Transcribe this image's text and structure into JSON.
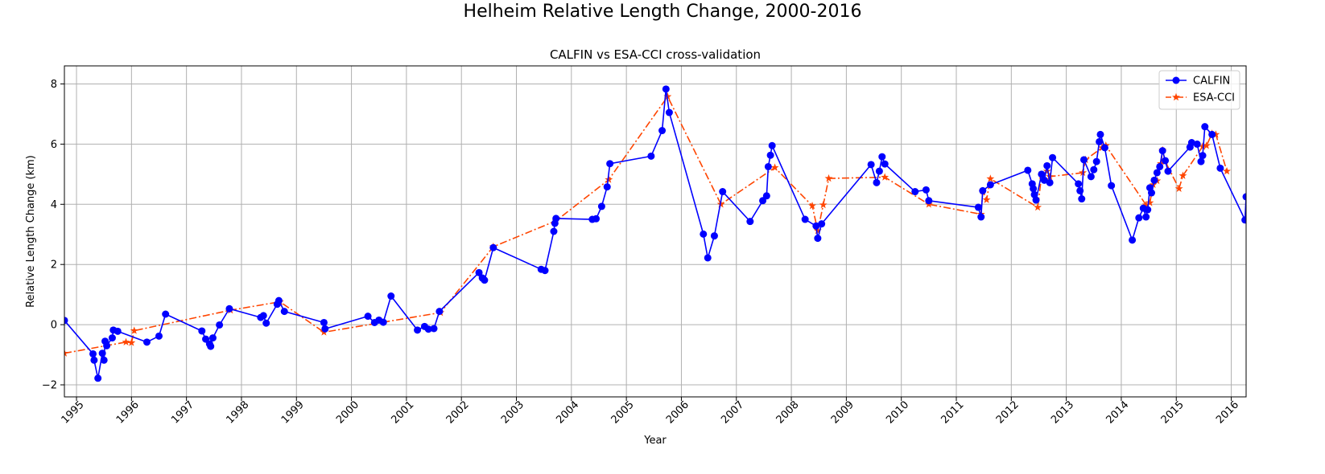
{
  "figure": {
    "suptitle": "Helheim Relative Length Change, 2000-2016"
  },
  "colors": {
    "calfin": "#0000ff",
    "esacci": "#ff4500",
    "grid": "#b0b0b0"
  },
  "chart_data": {
    "type": "line",
    "title": "CALFIN vs ESA-CCI cross-validation",
    "xlabel": "Year",
    "ylabel": "Relative Length Change (km)",
    "xlim": [
      1994.78,
      2016.27
    ],
    "ylim": [
      -2.4,
      8.6
    ],
    "xticks": [
      1995,
      1996,
      1997,
      1998,
      1999,
      2000,
      2001,
      2002,
      2003,
      2004,
      2005,
      2006,
      2007,
      2008,
      2009,
      2010,
      2011,
      2012,
      2013,
      2014,
      2015,
      2016
    ],
    "xtick_labels": [
      "1995",
      "1996",
      "1997",
      "1998",
      "1999",
      "2000",
      "2001",
      "2002",
      "2003",
      "2004",
      "2005",
      "2006",
      "2007",
      "2008",
      "2009",
      "2010",
      "2011",
      "2012",
      "2013",
      "2014",
      "2015",
      "2016"
    ],
    "yticks": [
      -2,
      0,
      2,
      4,
      6,
      8
    ],
    "ytick_labels": [
      "−2",
      "0",
      "2",
      "4",
      "6",
      "8"
    ],
    "grid": true,
    "legend_position": "top-right",
    "series": [
      {
        "name": "CALFIN",
        "marker": "circle",
        "linestyle": "solid",
        "points": [
          [
            1994.78,
            0.14
          ],
          [
            1995.3,
            -0.97
          ],
          [
            1995.32,
            -1.18
          ],
          [
            1995.39,
            -1.78
          ],
          [
            1995.47,
            -0.95
          ],
          [
            1995.5,
            -1.18
          ],
          [
            1995.52,
            -0.55
          ],
          [
            1995.55,
            -0.7
          ],
          [
            1995.65,
            -0.44
          ],
          [
            1995.67,
            -0.18
          ],
          [
            1995.75,
            -0.22
          ],
          [
            1996.28,
            -0.58
          ],
          [
            1996.5,
            -0.38
          ],
          [
            1996.62,
            0.35
          ],
          [
            1997.28,
            -0.21
          ],
          [
            1997.35,
            -0.48
          ],
          [
            1997.42,
            -0.64
          ],
          [
            1997.44,
            -0.72
          ],
          [
            1997.48,
            -0.44
          ],
          [
            1997.6,
            -0.01
          ],
          [
            1997.78,
            0.53
          ],
          [
            1998.35,
            0.24
          ],
          [
            1998.4,
            0.3
          ],
          [
            1998.45,
            0.05
          ],
          [
            1998.65,
            0.68
          ],
          [
            1998.68,
            0.8
          ],
          [
            1998.78,
            0.44
          ],
          [
            1999.5,
            0.07
          ],
          [
            1999.52,
            -0.14
          ],
          [
            2000.3,
            0.28
          ],
          [
            2000.42,
            0.07
          ],
          [
            2000.5,
            0.15
          ],
          [
            2000.58,
            0.08
          ],
          [
            2000.72,
            0.95
          ],
          [
            2001.2,
            -0.18
          ],
          [
            2001.33,
            -0.06
          ],
          [
            2001.4,
            -0.15
          ],
          [
            2001.5,
            -0.13
          ],
          [
            2001.6,
            0.44
          ],
          [
            2002.32,
            1.73
          ],
          [
            2002.38,
            1.55
          ],
          [
            2002.42,
            1.48
          ],
          [
            2002.58,
            2.56
          ],
          [
            2003.45,
            1.84
          ],
          [
            2003.52,
            1.8
          ],
          [
            2003.68,
            3.1
          ],
          [
            2003.7,
            3.37
          ],
          [
            2003.72,
            3.53
          ],
          [
            2004.38,
            3.5
          ],
          [
            2004.45,
            3.52
          ],
          [
            2004.55,
            3.93
          ],
          [
            2004.65,
            4.58
          ],
          [
            2004.7,
            5.35
          ],
          [
            2005.45,
            5.6
          ],
          [
            2005.65,
            6.45
          ],
          [
            2005.72,
            7.83
          ],
          [
            2005.78,
            7.05
          ],
          [
            2006.4,
            3.01
          ],
          [
            2006.48,
            2.22
          ],
          [
            2006.6,
            2.95
          ],
          [
            2006.75,
            4.42
          ],
          [
            2007.25,
            3.43
          ],
          [
            2007.48,
            4.12
          ],
          [
            2007.55,
            4.28
          ],
          [
            2007.58,
            5.25
          ],
          [
            2007.62,
            5.63
          ],
          [
            2007.65,
            5.95
          ],
          [
            2008.25,
            3.5
          ],
          [
            2008.45,
            3.28
          ],
          [
            2008.48,
            2.87
          ],
          [
            2008.55,
            3.35
          ],
          [
            2009.45,
            5.32
          ],
          [
            2009.55,
            4.72
          ],
          [
            2009.6,
            5.1
          ],
          [
            2009.65,
            5.58
          ],
          [
            2009.7,
            5.34
          ],
          [
            2010.25,
            4.42
          ],
          [
            2010.45,
            4.48
          ],
          [
            2010.5,
            4.12
          ],
          [
            2011.4,
            3.9
          ],
          [
            2011.45,
            3.58
          ],
          [
            2011.48,
            4.45
          ],
          [
            2011.62,
            4.65
          ],
          [
            2012.3,
            5.13
          ],
          [
            2012.38,
            4.68
          ],
          [
            2012.4,
            4.52
          ],
          [
            2012.42,
            4.32
          ],
          [
            2012.45,
            4.14
          ],
          [
            2012.55,
            5.0
          ],
          [
            2012.6,
            4.8
          ],
          [
            2012.65,
            5.28
          ],
          [
            2012.7,
            4.72
          ],
          [
            2012.75,
            5.55
          ],
          [
            2013.22,
            4.68
          ],
          [
            2013.25,
            4.45
          ],
          [
            2013.28,
            4.18
          ],
          [
            2013.32,
            5.48
          ],
          [
            2013.45,
            4.92
          ],
          [
            2013.5,
            5.15
          ],
          [
            2013.55,
            5.42
          ],
          [
            2013.6,
            6.08
          ],
          [
            2013.62,
            6.32
          ],
          [
            2013.7,
            5.88
          ],
          [
            2013.82,
            4.62
          ],
          [
            2014.2,
            2.81
          ],
          [
            2014.32,
            3.55
          ],
          [
            2014.4,
            3.87
          ],
          [
            2014.45,
            3.58
          ],
          [
            2014.48,
            3.82
          ],
          [
            2014.52,
            4.55
          ],
          [
            2014.55,
            4.38
          ],
          [
            2014.6,
            4.8
          ],
          [
            2014.65,
            5.05
          ],
          [
            2014.7,
            5.25
          ],
          [
            2014.75,
            5.78
          ],
          [
            2014.8,
            5.45
          ],
          [
            2014.85,
            5.1
          ],
          [
            2015.25,
            5.9
          ],
          [
            2015.28,
            6.05
          ],
          [
            2015.38,
            6.0
          ],
          [
            2015.45,
            5.42
          ],
          [
            2015.48,
            5.62
          ],
          [
            2015.52,
            6.58
          ],
          [
            2015.65,
            6.32
          ],
          [
            2015.8,
            5.2
          ],
          [
            2016.25,
            3.48
          ],
          [
            2016.27,
            4.25
          ]
        ]
      },
      {
        "name": "ESA-CCI",
        "marker": "star",
        "linestyle": "dashdot",
        "points": [
          [
            1994.78,
            -0.95
          ],
          [
            1995.9,
            -0.58
          ],
          [
            1996.0,
            -0.6
          ],
          [
            1996.05,
            -0.2
          ],
          [
            1997.8,
            0.48
          ],
          [
            1998.7,
            0.76
          ],
          [
            1999.5,
            -0.25
          ],
          [
            2001.62,
            0.4
          ],
          [
            2002.58,
            2.59
          ],
          [
            2003.72,
            3.45
          ],
          [
            2004.68,
            4.82
          ],
          [
            2005.75,
            7.58
          ],
          [
            2006.72,
            4.0
          ],
          [
            2007.7,
            5.22
          ],
          [
            2008.38,
            3.95
          ],
          [
            2008.48,
            3.12
          ],
          [
            2008.58,
            3.98
          ],
          [
            2008.68,
            4.86
          ],
          [
            2009.7,
            4.9
          ],
          [
            2010.5,
            4.0
          ],
          [
            2011.45,
            3.67
          ],
          [
            2011.48,
            4.44
          ],
          [
            2011.55,
            4.15
          ],
          [
            2011.62,
            4.85
          ],
          [
            2012.48,
            3.9
          ],
          [
            2012.55,
            4.95
          ],
          [
            2012.65,
            5.1
          ],
          [
            2012.7,
            4.92
          ],
          [
            2013.3,
            5.05
          ],
          [
            2013.35,
            5.48
          ],
          [
            2013.65,
            5.88
          ],
          [
            2013.72,
            5.95
          ],
          [
            2014.45,
            3.98
          ],
          [
            2014.52,
            4.05
          ],
          [
            2014.58,
            4.65
          ],
          [
            2014.65,
            4.78
          ],
          [
            2014.72,
            5.35
          ],
          [
            2014.75,
            5.8
          ],
          [
            2014.8,
            5.42
          ],
          [
            2015.05,
            4.52
          ],
          [
            2015.12,
            4.95
          ],
          [
            2015.48,
            5.92
          ],
          [
            2015.55,
            5.95
          ],
          [
            2015.65,
            6.35
          ],
          [
            2015.72,
            6.32
          ],
          [
            2015.92,
            5.1
          ]
        ]
      }
    ]
  }
}
